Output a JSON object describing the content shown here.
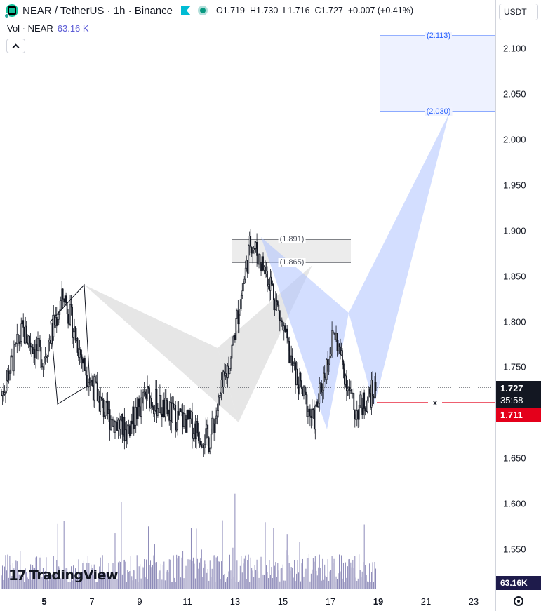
{
  "header": {
    "symbol_title": "NEAR / TetherUS · 1h · Binance",
    "ohlc": {
      "open": "O1.719",
      "high": "H1.730",
      "low": "L1.716",
      "close": "C1.727",
      "change": "+0.007 (+0.41%)"
    },
    "icons": [
      "near-coin-icon",
      "flag-icon",
      "market-status-icon"
    ]
  },
  "volume_legend": {
    "label": "Vol · NEAR",
    "value": "63.16 K"
  },
  "price_scale": {
    "currency": "USDT",
    "ticks": [
      "2.100",
      "2.050",
      "2.000",
      "1.950",
      "1.900",
      "1.850",
      "1.800",
      "1.750",
      "1.650",
      "1.600",
      "1.550"
    ],
    "last_price": "1.727",
    "countdown": "35:58",
    "alert_price": "1.711",
    "volume_value": "63.16K"
  },
  "time_scale": {
    "ticks": [
      "5",
      "7",
      "9",
      "11",
      "13",
      "15",
      "17",
      "19",
      "21",
      "23"
    ]
  },
  "drawings": {
    "zone_top_label": "(1.891)",
    "zone_bottom_label": "(1.865)",
    "target_top_label": "(2.113)",
    "target_bottom_label": "(2.030)",
    "alert_marker": "x"
  },
  "branding": {
    "logo_mark": "17",
    "logo_text": "TradingView"
  },
  "chart_data": {
    "type": "candlestick",
    "x": [
      "4",
      "5",
      "6",
      "7",
      "8",
      "9",
      "10",
      "11",
      "12",
      "13",
      "14",
      "15",
      "16",
      "17",
      "18",
      "19"
    ],
    "ylim": [
      1.5,
      2.15
    ],
    "price_path": [
      1.72,
      1.79,
      1.76,
      1.83,
      1.75,
      1.7,
      1.68,
      1.72,
      1.7,
      1.69,
      1.67,
      1.76,
      1.89,
      1.84,
      1.75,
      1.69,
      1.79,
      1.7,
      1.727
    ],
    "reference_prices": {
      "zone_top": 1.891,
      "zone_bottom": 1.865,
      "target_top": 2.113,
      "target_bottom": 2.03,
      "alert": 1.711,
      "last": 1.727
    },
    "colors": {
      "bull": "#131722",
      "bear": "#131722",
      "volume": "#8c89b8",
      "pattern_blue": "#aec3ff",
      "pattern_gray": "#c8c8c8",
      "alert_line": "#e4001b"
    }
  }
}
